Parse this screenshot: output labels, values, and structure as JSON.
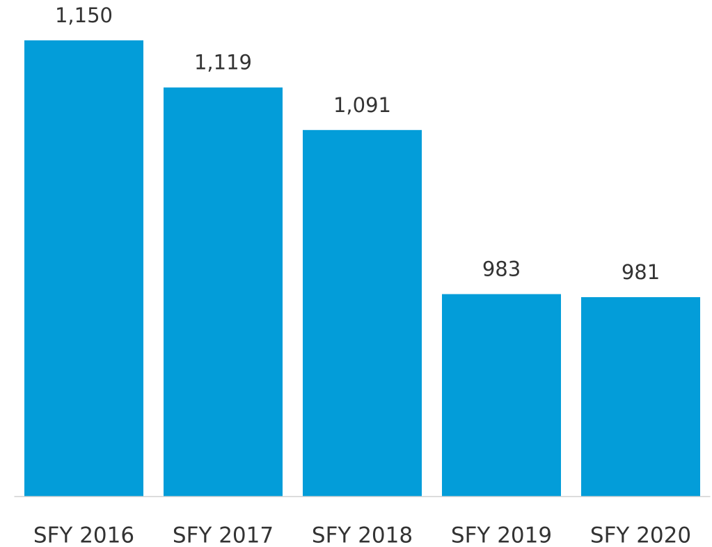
{
  "chart_data": {
    "type": "bar",
    "categories": [
      "SFY 2016",
      "SFY 2017",
      "SFY 2018",
      "SFY 2019",
      "SFY 2020"
    ],
    "values": [
      1150,
      1119,
      1091,
      983,
      981
    ],
    "value_labels": [
      "1,150",
      "1,119",
      "1,091",
      "983",
      "981"
    ],
    "color": "#039dd9",
    "ylim": [
      850,
      1150
    ]
  }
}
